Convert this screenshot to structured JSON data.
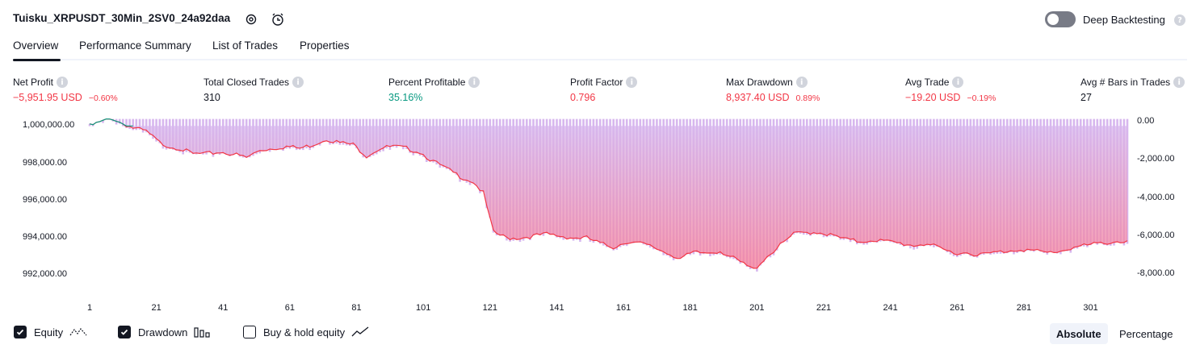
{
  "header": {
    "strategy_title": "Tuisku_XRPUSDT_30Min_2SV0_24a92daa",
    "deep_backtesting_label": "Deep Backtesting",
    "deep_backtesting_enabled": false
  },
  "tabs": [
    {
      "label": "Overview",
      "active": true
    },
    {
      "label": "Performance Summary",
      "active": false
    },
    {
      "label": "List of Trades",
      "active": false
    },
    {
      "label": "Properties",
      "active": false
    }
  ],
  "stats": [
    {
      "label": "Net Profit",
      "value": "−5,951.95 USD",
      "pct": "−0.60%",
      "color": "red"
    },
    {
      "label": "Total Closed Trades",
      "value": "310",
      "pct": "",
      "color": "normal"
    },
    {
      "label": "Percent Profitable",
      "value": "35.16%",
      "pct": "",
      "color": "green"
    },
    {
      "label": "Profit Factor",
      "value": "0.796",
      "pct": "",
      "color": "red"
    },
    {
      "label": "Max Drawdown",
      "value": "8,937.40 USD",
      "pct": "0.89%",
      "color": "red"
    },
    {
      "label": "Avg Trade",
      "value": "−19.20 USD",
      "pct": "−0.19%",
      "color": "red"
    },
    {
      "label": "Avg # Bars in Trades",
      "value": "27",
      "pct": "",
      "color": "normal"
    }
  ],
  "chart_data": {
    "type": "area",
    "x_ticks": [
      "1",
      "21",
      "41",
      "61",
      "81",
      "101",
      "121",
      "141",
      "161",
      "181",
      "201",
      "221",
      "241",
      "261",
      "281",
      "301"
    ],
    "x_range": [
      1,
      312
    ],
    "left_axis_ticks": [
      "1,000,000.00",
      "998,000.00",
      "996,000.00",
      "994,000.00",
      "992,000.00"
    ],
    "left_axis_range": [
      991200,
      1000400
    ],
    "right_axis_ticks": [
      "0.00",
      "-2,000.00",
      "-4,000.00",
      "-6,000.00",
      "-8,000.00"
    ],
    "right_axis_range": [
      -9000,
      0
    ],
    "equity_keypoints": [
      [
        1,
        1000000
      ],
      [
        5,
        1000250
      ],
      [
        8,
        1000400
      ],
      [
        10,
        1000200
      ],
      [
        14,
        999900
      ],
      [
        18,
        999700
      ],
      [
        22,
        999100
      ],
      [
        25,
        998900
      ],
      [
        28,
        998800
      ],
      [
        32,
        998500
      ],
      [
        36,
        998500
      ],
      [
        40,
        998600
      ],
      [
        44,
        998500
      ],
      [
        48,
        998300
      ],
      [
        52,
        998700
      ],
      [
        56,
        998800
      ],
      [
        60,
        998900
      ],
      [
        64,
        998800
      ],
      [
        68,
        999000
      ],
      [
        72,
        999300
      ],
      [
        76,
        999100
      ],
      [
        80,
        999000
      ],
      [
        84,
        998400
      ],
      [
        88,
        998800
      ],
      [
        92,
        998900
      ],
      [
        96,
        998800
      ],
      [
        100,
        998600
      ],
      [
        104,
        998100
      ],
      [
        108,
        997700
      ],
      [
        112,
        997300
      ],
      [
        116,
        997000
      ],
      [
        119,
        996400
      ],
      [
        122,
        994300
      ],
      [
        126,
        994000
      ],
      [
        130,
        994000
      ],
      [
        134,
        994100
      ],
      [
        138,
        994200
      ],
      [
        142,
        994100
      ],
      [
        146,
        994000
      ],
      [
        150,
        994000
      ],
      [
        154,
        993700
      ],
      [
        158,
        993500
      ],
      [
        162,
        993800
      ],
      [
        166,
        993700
      ],
      [
        170,
        993500
      ],
      [
        174,
        993200
      ],
      [
        178,
        992900
      ],
      [
        182,
        993200
      ],
      [
        186,
        993200
      ],
      [
        190,
        993300
      ],
      [
        194,
        992900
      ],
      [
        198,
        992500
      ],
      [
        200,
        992300
      ],
      [
        204,
        993000
      ],
      [
        208,
        993600
      ],
      [
        212,
        994200
      ],
      [
        216,
        994300
      ],
      [
        220,
        994300
      ],
      [
        224,
        994100
      ],
      [
        228,
        993900
      ],
      [
        232,
        993800
      ],
      [
        236,
        993900
      ],
      [
        240,
        993800
      ],
      [
        244,
        993700
      ],
      [
        248,
        993600
      ],
      [
        252,
        993700
      ],
      [
        256,
        993400
      ],
      [
        260,
        993200
      ],
      [
        264,
        993200
      ],
      [
        268,
        993100
      ],
      [
        272,
        993200
      ],
      [
        276,
        993300
      ],
      [
        280,
        993400
      ],
      [
        284,
        993300
      ],
      [
        288,
        993200
      ],
      [
        292,
        993300
      ],
      [
        296,
        993500
      ],
      [
        300,
        993600
      ],
      [
        304,
        993700
      ],
      [
        308,
        993800
      ],
      [
        312,
        993800
      ]
    ],
    "drawdown_note_series": "Drawdown",
    "series": [
      {
        "name": "Equity",
        "color": "#089981"
      },
      {
        "name": "Drawdown",
        "color": "#ce93d8",
        "fill_top": "#d7b7ee",
        "fill_bottom": "#f77c94",
        "line": "#f23645"
      },
      {
        "name": "Buy & hold equity",
        "color": "#9598a1"
      }
    ],
    "grid": false,
    "legend": "bottom-left"
  },
  "legend_toggles": [
    {
      "label": "Equity",
      "checked": true,
      "icon": "equity-line-icon"
    },
    {
      "label": "Drawdown",
      "checked": true,
      "icon": "drawdown-bars-icon"
    },
    {
      "label": "Buy & hold equity",
      "checked": false,
      "icon": "buy-hold-line-icon"
    }
  ],
  "scale_mode": {
    "absolute_label": "Absolute",
    "percentage_label": "Percentage",
    "selected": "Absolute"
  }
}
